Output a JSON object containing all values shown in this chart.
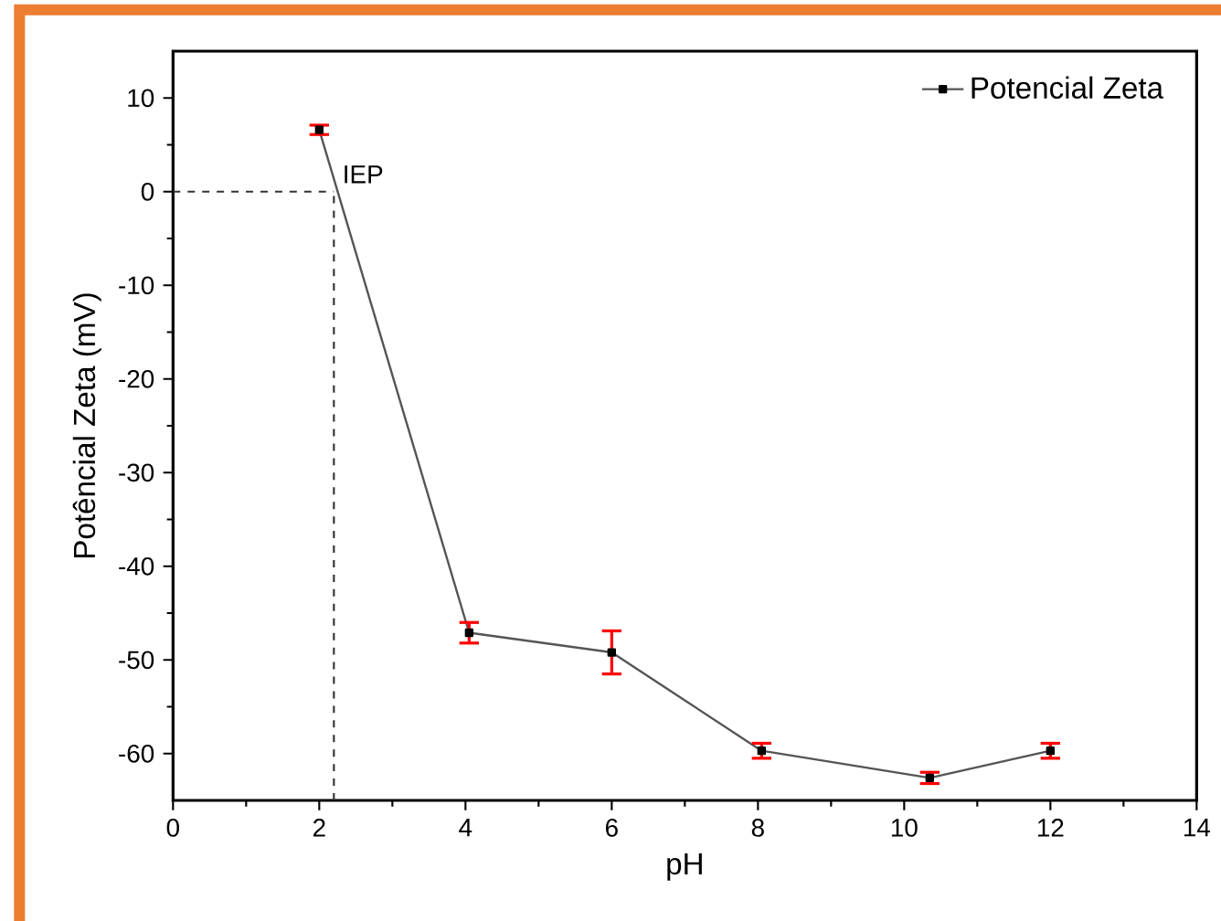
{
  "chart_data": {
    "type": "line",
    "xlabel": "pH",
    "ylabel": "Potêncial Zeta (mV)",
    "xlim": [
      0,
      14
    ],
    "ylim": [
      -65,
      15
    ],
    "xticks": [
      0,
      2,
      4,
      6,
      8,
      10,
      12,
      14
    ],
    "yticks": [
      -60,
      -50,
      -40,
      -30,
      -20,
      -10,
      0,
      10
    ],
    "series": [
      {
        "name": "Potencial Zeta",
        "color": "#555555",
        "x": [
          2.0,
          4.05,
          6.0,
          8.05,
          10.35,
          12.0
        ],
        "values": [
          6.6,
          -47.1,
          -49.2,
          -59.7,
          -62.6,
          -59.7
        ],
        "errors": [
          0.5,
          1.1,
          2.3,
          0.8,
          0.6,
          0.8
        ]
      }
    ],
    "marker": "square",
    "line_style": "solid",
    "legend": "top right",
    "grid": false,
    "ref_lines": [
      {
        "axis": "y",
        "value": 0,
        "line_style": "dashed",
        "color": "#333333"
      },
      {
        "axis": "x",
        "value": 2.2,
        "line_style": "dashed",
        "color": "#333333"
      }
    ],
    "annotations": [
      {
        "text": "IEP",
        "x": 2.2,
        "y": 0
      }
    ]
  }
}
